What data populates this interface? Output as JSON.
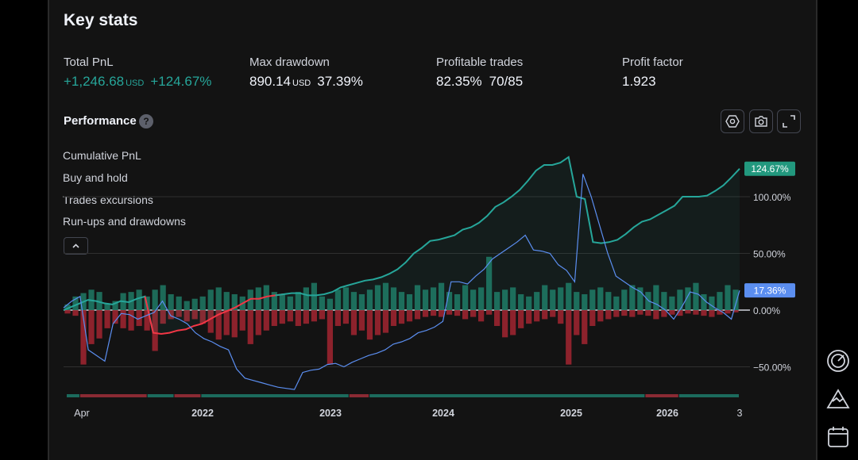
{
  "header": {
    "title": "Key stats"
  },
  "stats": [
    {
      "label": "Total PnL",
      "value": "+1,246.68",
      "unit": "USD",
      "extra": "+124.67%",
      "positive": true
    },
    {
      "label": "Max drawdown",
      "value": "890.14",
      "unit": "USD",
      "extra": "37.39%",
      "positive": false
    },
    {
      "label": "Profitable trades",
      "value": "82.35%",
      "unit": "",
      "extra": "70/85",
      "positive": false
    },
    {
      "label": "Profit factor",
      "value": "1.923",
      "unit": "",
      "extra": "",
      "positive": false
    }
  ],
  "performance": {
    "title": "Performance",
    "help": "?"
  },
  "legend": {
    "cumulative": "Cumulative PnL",
    "buy_hold": "Buy and hold",
    "excursions": "Trades excursions",
    "runups": "Run-ups and drawdowns"
  },
  "toolbar": [
    "settings-icon",
    "camera-icon",
    "fullscreen-icon"
  ],
  "sidebar_icons": [
    "gauge-icon",
    "mountain-chart-icon",
    "calendar-icon"
  ],
  "colors": {
    "green": "#26a69a",
    "red": "#f23645",
    "blue": "#5b8ef0",
    "background": "#131313"
  },
  "chart_data": {
    "type": "line",
    "x_labels": [
      "Apr",
      "2022",
      "2023",
      "2024",
      "2025",
      "2026",
      "3"
    ],
    "x_label_bold": [
      false,
      true,
      true,
      true,
      true,
      true,
      false
    ],
    "y_ticks": [
      "100.00%",
      "50.00%",
      "0.00%",
      "−50.00%"
    ],
    "y_tick_values": [
      100,
      50,
      0,
      -50
    ],
    "ylim": [
      -78,
      142
    ],
    "last_values": {
      "cumulative": "124.67%",
      "buy_hold": "17.36%"
    },
    "series": [
      {
        "name": "Cumulative PnL",
        "values": [
          0,
          3,
          6,
          9,
          8,
          6,
          5,
          8,
          7,
          10,
          12,
          -20,
          -21,
          -20,
          -18,
          -17,
          -14,
          -12,
          -8,
          -4,
          -1,
          2,
          6,
          10,
          10,
          12,
          13,
          14,
          15,
          15,
          13,
          13,
          14,
          16,
          20,
          22,
          24,
          26,
          27,
          29,
          32,
          36,
          42,
          50,
          55,
          61,
          62,
          64,
          66,
          71,
          73,
          77,
          83,
          91,
          95,
          100,
          106,
          114,
          123,
          128,
          128,
          130,
          135,
          100,
          98,
          60,
          59,
          60,
          62,
          67,
          73,
          78,
          80,
          84,
          88,
          92,
          100,
          100,
          100,
          101,
          105,
          110,
          117,
          124.67
        ]
      },
      {
        "name": "Buy and hold",
        "values": [
          2,
          8,
          12,
          -35,
          -40,
          -45,
          -12,
          -3,
          -4,
          -8,
          -5,
          -2,
          8,
          -5,
          -8,
          -12,
          -20,
          -25,
          -28,
          -32,
          -35,
          -52,
          -60,
          -62,
          -64,
          -66,
          -68,
          -69,
          -70,
          -55,
          -53,
          -52,
          -48,
          -47,
          -50,
          -46,
          -43,
          -40,
          -38,
          -35,
          -30,
          -28,
          -25,
          -20,
          -18,
          -15,
          -10,
          25,
          25,
          23,
          30,
          36,
          45,
          50,
          55,
          60,
          66,
          53,
          52,
          50,
          40,
          35,
          25,
          120,
          100,
          75,
          50,
          30,
          25,
          20,
          16,
          8,
          5,
          0,
          -8,
          3,
          16,
          14,
          7,
          2,
          -2,
          -8,
          17.36
        ]
      },
      {
        "name": "Trades excursions",
        "up": [
          5,
          12,
          15,
          18,
          16,
          6,
          8,
          15,
          16,
          18,
          12,
          18,
          22,
          14,
          12,
          8,
          10,
          12,
          18,
          20,
          16,
          14,
          12,
          18,
          20,
          22,
          16,
          14,
          12,
          16,
          20,
          24,
          12,
          10,
          18,
          20,
          16,
          14,
          18,
          22,
          24,
          20,
          16,
          14,
          22,
          18,
          20,
          24,
          16,
          14,
          22,
          18,
          20,
          47,
          16,
          18,
          20,
          14,
          12,
          16,
          22,
          18,
          20,
          24,
          16,
          14,
          18,
          20,
          16,
          12,
          18,
          22,
          20,
          16,
          22,
          16,
          12,
          18,
          20,
          24,
          14,
          12,
          16,
          22,
          18
        ],
        "down": [
          -3,
          -5,
          -48,
          -30,
          -25,
          -16,
          -12,
          -16,
          -18,
          -14,
          -18,
          -36,
          -12,
          -8,
          -6,
          -10,
          -8,
          -12,
          -20,
          -26,
          -22,
          -24,
          -18,
          -30,
          -22,
          -18,
          -14,
          -12,
          -10,
          -14,
          -12,
          -10,
          -8,
          -48,
          -14,
          -12,
          -22,
          -18,
          -26,
          -22,
          -20,
          -14,
          -12,
          -10,
          -8,
          -6,
          -5,
          -6,
          -4,
          -5,
          -8,
          -6,
          -10,
          -4,
          -14,
          -24,
          -22,
          -16,
          -12,
          -10,
          -8,
          -6,
          -12,
          -48,
          -22,
          -30,
          -14,
          -10,
          -8,
          -6,
          -5,
          -6,
          -4,
          -5,
          -8,
          -6,
          -4,
          -5,
          -3,
          -4,
          -5,
          -6,
          -4,
          -3,
          -2
        ]
      }
    ],
    "runups_drawdowns": {
      "segments": [
        {
          "from": 0,
          "to": 2,
          "type": "run-up"
        },
        {
          "from": 2,
          "to": 12,
          "type": "drawdown"
        },
        {
          "from": 12,
          "to": 16,
          "type": "run-up"
        },
        {
          "from": 16,
          "to": 20,
          "type": "drawdown"
        },
        {
          "from": 20,
          "to": 42,
          "type": "run-up"
        },
        {
          "from": 42,
          "to": 45,
          "type": "drawdown"
        },
        {
          "from": 45,
          "to": 86,
          "type": "run-up"
        },
        {
          "from": 86,
          "to": 91,
          "type": "drawdown"
        },
        {
          "from": 91,
          "to": 100,
          "type": "run-up"
        }
      ]
    }
  }
}
